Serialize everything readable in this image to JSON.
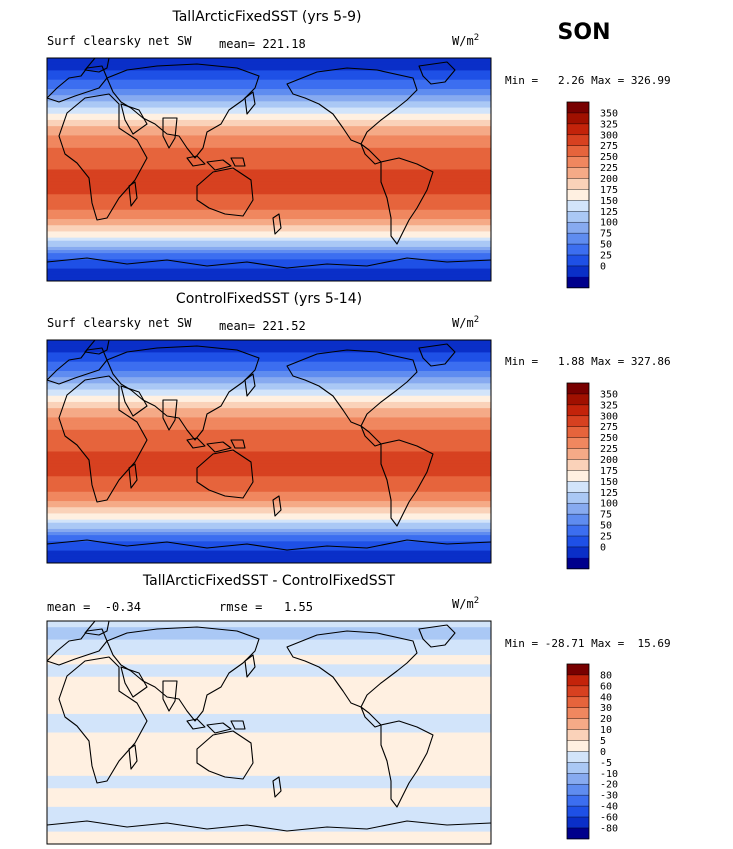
{
  "season": "SON",
  "palettes": {
    "abs": [
      "#00008c",
      "#0a2fc8",
      "#1e50e6",
      "#3c6ef0",
      "#5f8cf0",
      "#87aaf0",
      "#aac8f5",
      "#d2e4fa",
      "#fff0e1",
      "#fad2b9",
      "#f5aa87",
      "#f0875f",
      "#e6643c",
      "#d74120",
      "#c3230a",
      "#a01000",
      "#780000"
    ],
    "diff": [
      "#00008c",
      "#0a2fc8",
      "#1e50e6",
      "#3c6ef0",
      "#5f8cf0",
      "#87aaf0",
      "#aac8f5",
      "#d2e4fa",
      "#fff0e1",
      "#fad2b9",
      "#f5aa87",
      "#f0875f",
      "#e6643c",
      "#d74120",
      "#c3230a",
      "#780000"
    ]
  },
  "panels": [
    {
      "id": "tall",
      "title": "TallArcticFixedSST (yrs 5-9)",
      "left_label": "Surf clearsky net SW",
      "mean_label": "mean= 221.18",
      "units_base": "W/m",
      "units_exp": "2",
      "minmax": "Min =   2.26 Max = 326.99",
      "kind": "abs",
      "colorbar_ticks": [
        "350",
        "325",
        "300",
        "275",
        "250",
        "225",
        "200",
        "175",
        "150",
        "125",
        "100",
        "75",
        "50",
        "25",
        "0"
      ]
    },
    {
      "id": "control",
      "title": "ControlFixedSST (yrs 5-14)",
      "left_label": "Surf clearsky net SW",
      "mean_label": "mean= 221.52",
      "units_base": "W/m",
      "units_exp": "2",
      "minmax": "Min =   1.88 Max = 327.86",
      "kind": "abs",
      "colorbar_ticks": [
        "350",
        "325",
        "300",
        "275",
        "250",
        "225",
        "200",
        "175",
        "150",
        "125",
        "100",
        "75",
        "50",
        "25",
        "0"
      ]
    },
    {
      "id": "diff",
      "title": "TallArcticFixedSST - ControlFixedSST",
      "left_label": "mean =  -0.34",
      "mean_label": "rmse =   1.55",
      "units_base": "W/m",
      "units_exp": "2",
      "minmax": "Min = -28.71 Max =  15.69",
      "kind": "diff",
      "colorbar_ticks": [
        "80",
        "60",
        "40",
        "30",
        "20",
        "10",
        "5",
        "0",
        "-5",
        "-10",
        "-20",
        "-30",
        "-40",
        "-60",
        "-80"
      ]
    }
  ],
  "chart_data": [
    {
      "type": "heatmap",
      "title": "TallArcticFixedSST (yrs 5-9)",
      "field": "Surf clearsky net SW",
      "season": "SON",
      "units": "W/m^2",
      "mean": 221.18,
      "min": 2.26,
      "max": 326.99,
      "levels": [
        0,
        25,
        50,
        75,
        100,
        125,
        150,
        175,
        200,
        225,
        250,
        275,
        300,
        325,
        350
      ],
      "lat_profile": {
        "lat": [
          90,
          80,
          70,
          60,
          50,
          40,
          30,
          20,
          10,
          0,
          -10,
          -20,
          -30,
          -40,
          -50,
          -60,
          -70,
          -80,
          -90
        ],
        "value": [
          5,
          25,
          55,
          100,
          150,
          200,
          240,
          270,
          290,
          300,
          303,
          300,
          285,
          250,
          200,
          140,
          60,
          20,
          10
        ]
      }
    },
    {
      "type": "heatmap",
      "title": "ControlFixedSST (yrs 5-14)",
      "field": "Surf clearsky net SW",
      "season": "SON",
      "units": "W/m^2",
      "mean": 221.52,
      "min": 1.88,
      "max": 327.86,
      "levels": [
        0,
        25,
        50,
        75,
        100,
        125,
        150,
        175,
        200,
        225,
        250,
        275,
        300,
        325,
        350
      ],
      "lat_profile": {
        "lat": [
          90,
          80,
          70,
          60,
          50,
          40,
          30,
          20,
          10,
          0,
          -10,
          -20,
          -30,
          -40,
          -50,
          -60,
          -70,
          -80,
          -90
        ],
        "value": [
          5,
          25,
          55,
          100,
          150,
          200,
          240,
          270,
          290,
          300,
          303,
          300,
          285,
          250,
          200,
          140,
          60,
          20,
          10
        ]
      }
    },
    {
      "type": "heatmap",
      "title": "TallArcticFixedSST - ControlFixedSST",
      "season": "SON",
      "units": "W/m^2",
      "mean": -0.34,
      "rmse": 1.55,
      "min": -28.71,
      "max": 15.69,
      "levels": [
        -80,
        -60,
        -40,
        -30,
        -20,
        -10,
        -5,
        0,
        5,
        10,
        20,
        30,
        40,
        60,
        80
      ],
      "lat_profile": {
        "lat": [
          90,
          80,
          70,
          60,
          50,
          40,
          30,
          20,
          10,
          0,
          -10,
          -20,
          -30,
          -40,
          -50,
          -60,
          -70,
          -80,
          -90
        ],
        "value": [
          -1,
          -8,
          -2,
          1,
          -1,
          1,
          0,
          1,
          -1,
          0,
          1,
          0,
          1,
          -1,
          1,
          0,
          -1,
          0,
          0
        ]
      }
    }
  ]
}
